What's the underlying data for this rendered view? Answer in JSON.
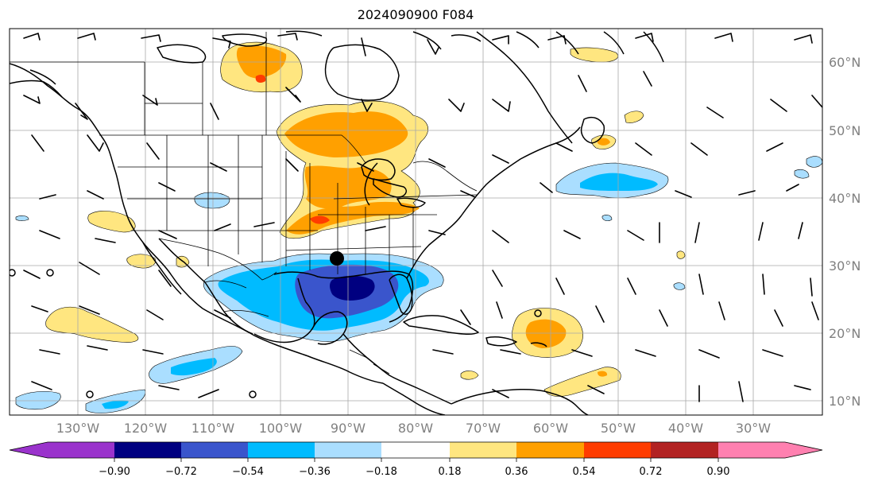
{
  "title": "2024090900 F084",
  "longitude_labels": [
    "130°W",
    "120°W",
    "110°W",
    "100°W",
    "90°W",
    "80°W",
    "70°W",
    "60°W",
    "50°W",
    "40°W",
    "30°W"
  ],
  "latitude_labels": [
    "60°N",
    "50°N",
    "40°N",
    "30°N",
    "20°N",
    "10°N"
  ],
  "colorbar": {
    "tick_labels": [
      "−0.90",
      "−0.72",
      "−0.54",
      "−0.36",
      "−0.18",
      "0.18",
      "0.36",
      "0.54",
      "0.72",
      "0.90"
    ],
    "colors": {
      "under": "#9a33cc",
      "b1": "#000080",
      "b2": "#3a55cc",
      "b3": "#00bbff",
      "b4": "#aadeff",
      "mid": "#ffffff",
      "r1": "#ffe680",
      "r2": "#ffa000",
      "r3": "#ff3c00",
      "r4": "#b22222",
      "over": "#ff80b0"
    }
  },
  "marker": {
    "name": "storm-center-dot",
    "lon": -89.5,
    "lat": 31.2
  }
}
